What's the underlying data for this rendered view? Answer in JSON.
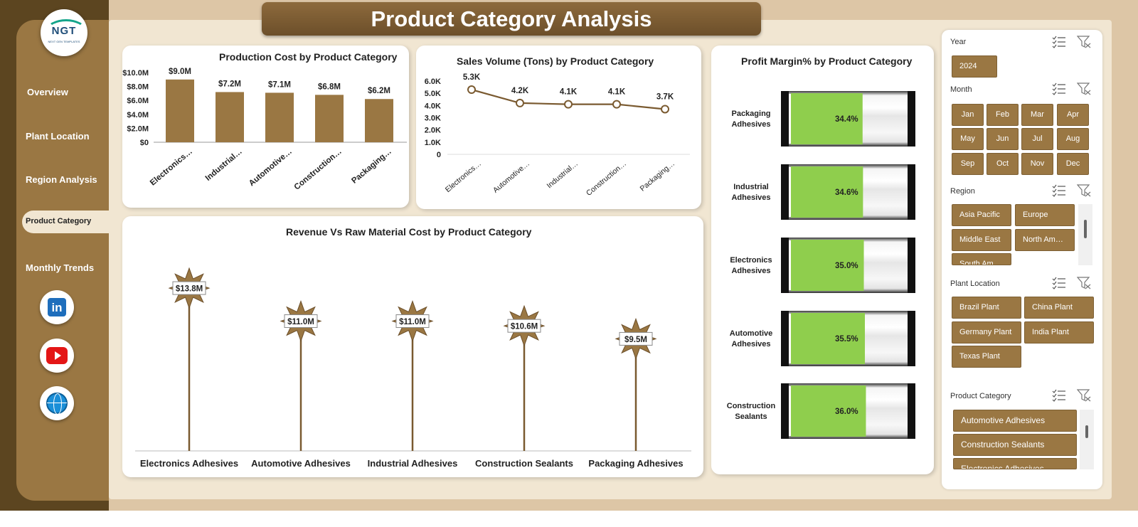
{
  "title": "Product Category Analysis",
  "logo": {
    "text": "NGT",
    "subtext": "NEXT GEN TEMPLATES"
  },
  "nav": {
    "items": [
      "Overview",
      "Plant Location",
      "Region Analysis",
      "Product Category",
      "Monthly Trends"
    ],
    "active": "Product Category"
  },
  "social": {
    "linkedin": "linkedin-icon",
    "youtube": "youtube-icon",
    "website": "globe-icon"
  },
  "colors": {
    "bar": "#9a7743",
    "line": "#7a5a30",
    "star": "#9a7743",
    "gauge_fill": "#8fce4d",
    "slicer_button": "#9a7743"
  },
  "chart_data": [
    {
      "type": "bar",
      "title": "Production Cost by Product Category",
      "categories": [
        "Electronics…",
        "Industrial…",
        "Automotive…",
        "Construction…",
        "Packaging…"
      ],
      "values": [
        9.0,
        7.2,
        7.1,
        6.8,
        6.2
      ],
      "data_labels": [
        "$9.0M",
        "$7.2M",
        "$7.1M",
        "$6.8M",
        "$6.2M"
      ],
      "yticks": [
        "$0",
        "$2.0M",
        "$4.0M",
        "$6.0M",
        "$8.0M",
        "$10.0M"
      ],
      "ylim": [
        0,
        10
      ]
    },
    {
      "type": "line",
      "title": "Sales Volume (Tons) by Product Category",
      "categories": [
        "Electronics…",
        "Automotive…",
        "Industrial…",
        "Construction…",
        "Packaging…"
      ],
      "values": [
        5.3,
        4.2,
        4.1,
        4.1,
        3.7
      ],
      "data_labels": [
        "5.3K",
        "4.2K",
        "4.1K",
        "4.1K",
        "3.7K"
      ],
      "yticks": [
        "0",
        "1.0K",
        "2.0K",
        "3.0K",
        "4.0K",
        "5.0K",
        "6.0K"
      ],
      "ylim": [
        0,
        6
      ]
    },
    {
      "type": "bar",
      "title": "Profit Margin% by Product Category",
      "categories": [
        "Packaging Adhesives",
        "Industrial Adhesives",
        "Electronics Adhesives",
        "Automotive Adhesives",
        "Construction Sealants"
      ],
      "values": [
        34.4,
        34.6,
        35.0,
        35.5,
        36.0
      ],
      "data_labels": [
        "34.4%",
        "34.6%",
        "35.0%",
        "35.5%",
        "36.0%"
      ]
    },
    {
      "type": "scatter",
      "title": "Revenue Vs Raw Material Cost by Product Category",
      "categories": [
        "Electronics Adhesives",
        "Automotive Adhesives",
        "Industrial Adhesives",
        "Construction Sealants",
        "Packaging Adhesives"
      ],
      "values": [
        13.8,
        11.0,
        11.0,
        10.6,
        9.5
      ],
      "data_labels": [
        "$13.8M",
        "$11.0M",
        "$11.0M",
        "$10.6M",
        "$9.5M"
      ]
    }
  ],
  "slicers": {
    "year": {
      "label": "Year",
      "items": [
        "2024"
      ]
    },
    "month": {
      "label": "Month",
      "items": [
        "Jan",
        "Feb",
        "Mar",
        "Apr",
        "May",
        "Jun",
        "Jul",
        "Aug",
        "Sep",
        "Oct",
        "Nov",
        "Dec"
      ]
    },
    "region": {
      "label": "Region",
      "items": [
        "Asia Pacific",
        "Europe",
        "Middle East",
        "North Am…",
        "South Am…"
      ]
    },
    "plant": {
      "label": "Plant Location",
      "items": [
        "Brazil Plant",
        "China Plant",
        "Germany Plant",
        "India Plant",
        "Texas Plant"
      ]
    },
    "category": {
      "label": "Product Category",
      "items": [
        "Automotive Adhesives",
        "Construction Sealants",
        "Electronics Adhesives"
      ]
    }
  }
}
